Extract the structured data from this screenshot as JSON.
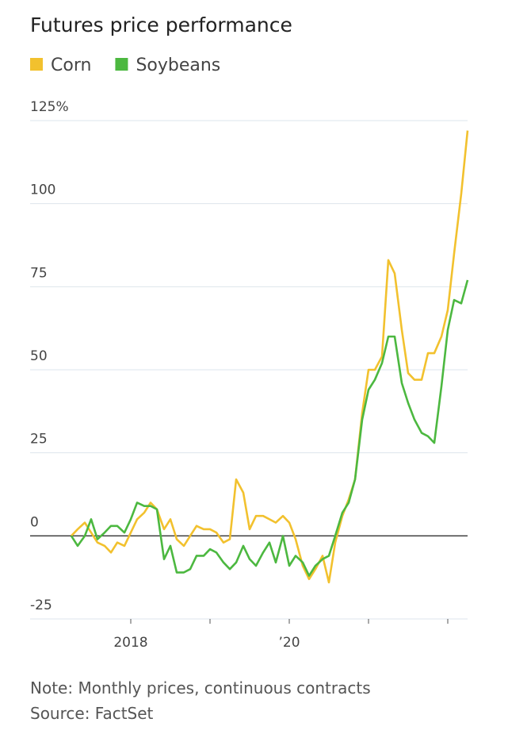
{
  "chart_data": {
    "type": "line",
    "title": "Futures price performance",
    "note": "Note: Monthly prices, continuous contracts",
    "source": "Source: FactSet",
    "x": [
      2017.25,
      2017.33,
      2017.42,
      2017.5,
      2017.58,
      2017.67,
      2017.75,
      2017.83,
      2017.92,
      2018,
      2018.08,
      2018.17,
      2018.25,
      2018.33,
      2018.42,
      2018.5,
      2018.58,
      2018.67,
      2018.75,
      2018.83,
      2018.92,
      2019,
      2019.08,
      2019.17,
      2019.25,
      2019.33,
      2019.42,
      2019.5,
      2019.58,
      2019.67,
      2019.75,
      2019.83,
      2019.92,
      2020,
      2020.08,
      2020.17,
      2020.25,
      2020.33,
      2020.42,
      2020.5,
      2020.58,
      2020.67,
      2020.75,
      2020.83,
      2020.92,
      2021,
      2021.08,
      2021.17,
      2021.25,
      2021.33,
      2021.42,
      2021.5,
      2021.58,
      2021.67,
      2021.75,
      2021.83,
      2021.92,
      2022,
      2022.08,
      2022.17,
      2022.25
    ],
    "series": [
      {
        "name": "Corn",
        "color": "#f2c12e",
        "values": [
          0,
          2,
          4,
          1,
          -2,
          -3,
          -5,
          -2,
          -3,
          1,
          5,
          7,
          10,
          8,
          2,
          5,
          -1,
          -3,
          0,
          3,
          2,
          2,
          1,
          -2,
          -1,
          17,
          13,
          2,
          6,
          6,
          5,
          4,
          6,
          4,
          -1,
          -9,
          -13,
          -10,
          -6,
          -14,
          -2,
          6,
          11,
          17,
          37,
          50,
          50,
          54,
          83,
          79,
          62,
          49,
          47,
          47,
          55,
          55,
          60,
          68,
          85,
          103,
          122
        ]
      },
      {
        "name": "Soybeans",
        "color": "#4cb840",
        "values": [
          0,
          -3,
          0,
          5,
          -1,
          1,
          3,
          3,
          1,
          5,
          10,
          9,
          9,
          8,
          -7,
          -3,
          -11,
          -11,
          -10,
          -6,
          -6,
          -4,
          -5,
          -8,
          -10,
          -8,
          -3,
          -7,
          -9,
          -5,
          -2,
          -8,
          0,
          -9,
          -6,
          -8,
          -12,
          -9,
          -7,
          -6,
          0,
          7,
          10,
          17,
          35,
          44,
          47,
          52,
          60,
          60,
          46,
          40,
          35,
          31,
          30,
          28,
          45,
          62,
          71,
          70,
          77
        ]
      }
    ],
    "xlim": [
      2017.25,
      2022.25
    ],
    "xticks": [
      2018,
      {
        "value": 2020,
        "label": "’20"
      }
    ],
    "xminor_ticks": [
      2019,
      2021,
      2022
    ],
    "ylim": [
      -25,
      125
    ],
    "yticks": [
      -25,
      0,
      25,
      50,
      75,
      100,
      {
        "value": 125,
        "label": "125%"
      }
    ],
    "grid": true
  }
}
